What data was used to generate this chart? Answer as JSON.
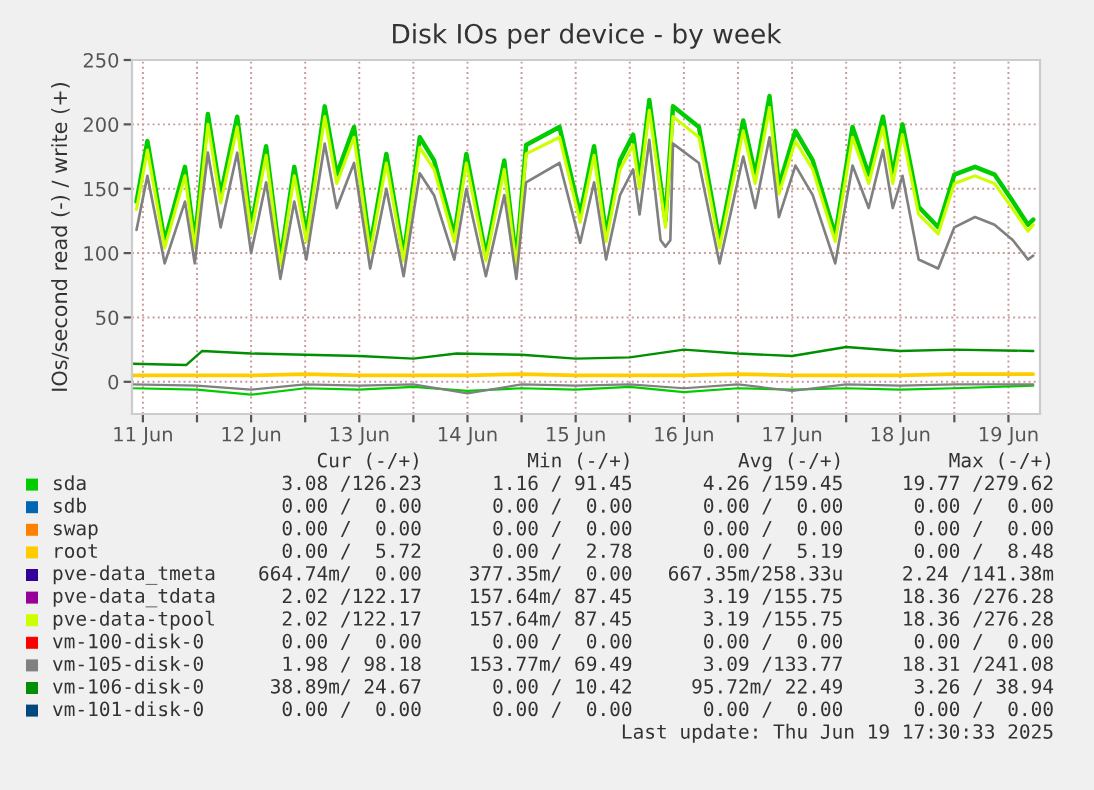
{
  "chart_data": {
    "type": "line",
    "title": "Disk IOs per device - by week",
    "ylabel": "IOs/second read (-) / write (+)",
    "xlim": [
      "2025-06-11T09:35",
      "2025-06-19T19:00"
    ],
    "ylim": [
      -25,
      250
    ],
    "yticks": [
      0,
      50,
      100,
      150,
      200,
      250
    ],
    "xticks": [
      {
        "value": "2025-06-11T12:00",
        "label": "11 Jun"
      },
      {
        "value": "2025-06-12",
        "label": null
      },
      {
        "value": "2025-06-12T12:00",
        "label": "12 Jun"
      },
      {
        "value": "2025-06-13",
        "label": null
      },
      {
        "value": "2025-06-13T12:00",
        "label": "13 Jun"
      },
      {
        "value": "2025-06-14",
        "label": null
      },
      {
        "value": "2025-06-14T12:00",
        "label": "14 Jun"
      },
      {
        "value": "2025-06-15",
        "label": null
      },
      {
        "value": "2025-06-15T12:00",
        "label": "15 Jun"
      },
      {
        "value": "2025-06-16",
        "label": null
      },
      {
        "value": "2025-06-16T12:00",
        "label": "16 Jun"
      },
      {
        "value": "2025-06-17",
        "label": null
      },
      {
        "value": "2025-06-17T12:00",
        "label": "17 Jun"
      },
      {
        "value": "2025-06-18",
        "label": null
      },
      {
        "value": "2025-06-18T12:00",
        "label": "18 Jun"
      },
      {
        "value": "2025-06-19",
        "label": null
      },
      {
        "value": "2025-06-19T12:00",
        "label": "19 Jun"
      }
    ],
    "grid": true,
    "legend": "bottom",
    "marker": "none",
    "line_style": "solid",
    "x": [
      "2025-06-11T10:35",
      "2025-06-11T13:00",
      "2025-06-11T16:50",
      "2025-06-11T21:20",
      "2025-06-11T23:30",
      "2025-06-12T02:25",
      "2025-06-12T05:15",
      "2025-06-12T08:55",
      "2025-06-12T12:00",
      "2025-06-12T15:20",
      "2025-06-12T18:30",
      "2025-06-12T21:35",
      "2025-06-13T00:15",
      "2025-06-13T04:20",
      "2025-06-13T07:00",
      "2025-06-13T10:50",
      "2025-06-13T14:25",
      "2025-06-13T18:00",
      "2025-06-13T21:50",
      "2025-06-14T01:25",
      "2025-06-14T04:35",
      "2025-06-14T09:05",
      "2025-06-14T11:45",
      "2025-06-14T16:05",
      "2025-06-14T20:10",
      "2025-06-14T22:50",
      "2025-06-15T01:00",
      "2025-06-15T08:25",
      "2025-06-15T13:00",
      "2025-06-15T16:05",
      "2025-06-15T18:45",
      "2025-06-15T21:50",
      "2025-06-16T00:45",
      "2025-06-16T02:10",
      "2025-06-16T04:20",
      "2025-06-16T07:55",
      "2025-06-16T09:35",
      "2025-06-16T15:20",
      "2025-06-16T19:55",
      "2025-06-17T01:10",
      "2025-06-17T03:50",
      "2025-06-17T07:00",
      "2025-06-17T09:05",
      "2025-06-17T12:45",
      "2025-06-17T16:35",
      "2025-06-17T21:35",
      "2025-06-18T01:25",
      "2025-06-18T05:00",
      "2025-06-18T08:10",
      "2025-06-18T10:20",
      "2025-06-18T12:30",
      "2025-06-18T16:05",
      "2025-06-18T20:25",
      "2025-06-19T00:00",
      "2025-06-19T04:35",
      "2025-06-19T08:55",
      "2025-06-19T13:00",
      "2025-06-19T16:20",
      "2025-06-19T17:30"
    ],
    "series": [
      {
        "name": "sda",
        "color": "#00cc00",
        "values": [
          140,
          187,
          109,
          167,
          109,
          208,
          145,
          206,
          120,
          183,
          94,
          167,
          114,
          214,
          161,
          198,
          105,
          177,
          98,
          190,
          172,
          114,
          177,
          98,
          172,
          94,
          184,
          198,
          130,
          183,
          114,
          172,
          192,
          156,
          219,
          125,
          214,
          198,
          109,
          203,
          161,
          222,
          152,
          195,
          172,
          114,
          198,
          161,
          206,
          161,
          200,
          136,
          120,
          161,
          167,
          161,
          140,
          122,
          126
        ]
      },
      {
        "name": "sdb",
        "color": "#0066b3",
        "values": [
          null,
          null,
          null,
          null,
          null,
          null,
          null,
          null,
          null,
          null,
          null,
          null,
          null,
          null,
          null,
          null,
          null,
          null,
          null,
          null,
          null,
          null,
          null,
          null,
          null,
          null,
          null,
          null,
          null,
          null,
          null,
          null,
          null,
          null,
          null,
          null,
          null,
          null,
          null,
          null,
          null,
          null,
          null,
          null,
          null,
          null,
          null,
          null,
          null,
          null,
          null,
          null,
          null,
          null,
          null,
          null,
          null,
          null,
          null
        ]
      },
      {
        "name": "swap",
        "color": "#ff8000",
        "values": [
          null,
          null,
          null,
          null,
          null,
          null,
          null,
          null,
          null,
          null,
          null,
          null,
          null,
          null,
          null,
          null,
          null,
          null,
          null,
          null,
          null,
          null,
          null,
          null,
          null,
          null,
          null,
          null,
          null,
          null,
          null,
          null,
          null,
          null,
          null,
          null,
          null,
          null,
          null,
          null,
          null,
          null,
          null,
          null,
          null,
          null,
          null,
          null,
          null,
          null,
          null,
          null,
          null,
          null,
          null,
          null,
          null,
          null,
          null
        ]
      },
      {
        "name": "root",
        "color": "#ffcc00",
        "x": [
          "2025-06-11T09:35",
          "2025-06-12",
          "2025-06-12T12:00",
          "2025-06-13",
          "2025-06-13T12:00",
          "2025-06-14",
          "2025-06-14T12:00",
          "2025-06-15",
          "2025-06-15T12:00",
          "2025-06-16",
          "2025-06-16T12:00",
          "2025-06-17",
          "2025-06-17T12:00",
          "2025-06-18",
          "2025-06-18T12:00",
          "2025-06-19",
          "2025-06-19T17:30"
        ],
        "values": [
          5,
          5,
          5,
          6,
          5,
          5,
          5,
          6,
          5,
          5,
          5,
          6,
          5,
          5,
          5,
          6,
          6
        ]
      },
      {
        "name": "pve-data_tmeta",
        "color": "#330099",
        "values": [
          null,
          null,
          null,
          null,
          null,
          null,
          null,
          null,
          null,
          null,
          null,
          null,
          null,
          null,
          null,
          null,
          null,
          null,
          null,
          null,
          null,
          null,
          null,
          null,
          null,
          null,
          null,
          null,
          null,
          null,
          null,
          null,
          null,
          null,
          null,
          null,
          null,
          null,
          null,
          null,
          null,
          null,
          null,
          null,
          null,
          null,
          null,
          null,
          null,
          null,
          null,
          null,
          null,
          null,
          null,
          null,
          null,
          null,
          null
        ]
      },
      {
        "name": "pve-data_tdata",
        "color": "#990099",
        "values": [
          null,
          null,
          null,
          null,
          null,
          null,
          null,
          null,
          null,
          null,
          null,
          null,
          null,
          null,
          null,
          null,
          null,
          null,
          null,
          null,
          null,
          null,
          null,
          null,
          null,
          null,
          null,
          null,
          null,
          null,
          null,
          null,
          null,
          null,
          null,
          null,
          null,
          null,
          null,
          null,
          null,
          null,
          null,
          null,
          null,
          null,
          null,
          null,
          null,
          null,
          null,
          null,
          null,
          null,
          null,
          null,
          null,
          null,
          null
        ]
      },
      {
        "name": "pve-data-tpool",
        "color": "#ccff00",
        "values": [
          134,
          180,
          104,
          160,
          104,
          200,
          139,
          198,
          115,
          176,
          90,
          160,
          109,
          206,
          154,
          190,
          100,
          170,
          94,
          182,
          165,
          109,
          170,
          94,
          165,
          90,
          177,
          190,
          124,
          176,
          109,
          165,
          184,
          150,
          211,
          120,
          206,
          190,
          104,
          195,
          154,
          213,
          146,
          187,
          165,
          109,
          190,
          154,
          198,
          154,
          192,
          130,
          115,
          154,
          160,
          154,
          134,
          117,
          122
        ]
      },
      {
        "name": "vm-100-disk-0",
        "color": "#ff0000",
        "values": [
          null,
          null,
          null,
          null,
          null,
          null,
          null,
          null,
          null,
          null,
          null,
          null,
          null,
          null,
          null,
          null,
          null,
          null,
          null,
          null,
          null,
          null,
          null,
          null,
          null,
          null,
          null,
          null,
          null,
          null,
          null,
          null,
          null,
          null,
          null,
          null,
          null,
          null,
          null,
          null,
          null,
          null,
          null,
          null,
          null,
          null,
          null,
          null,
          null,
          null,
          null,
          null,
          null,
          null,
          null,
          null,
          null,
          null,
          null
        ]
      },
      {
        "name": "vm-105-disk-0",
        "color": "#808080",
        "x": [
          "2025-06-11T10:35",
          "2025-06-11T13:00",
          "2025-06-11T16:50",
          "2025-06-11T21:20",
          "2025-06-11T23:30",
          "2025-06-12T02:25",
          "2025-06-12T05:15",
          "2025-06-12T08:55",
          "2025-06-12T12:00",
          "2025-06-12T15:20",
          "2025-06-12T18:30",
          "2025-06-12T21:35",
          "2025-06-13T00:15",
          "2025-06-13T04:20",
          "2025-06-13T07:00",
          "2025-06-13T10:50",
          "2025-06-13T14:25",
          "2025-06-13T18:00",
          "2025-06-13T21:50",
          "2025-06-14T01:25",
          "2025-06-14T04:35",
          "2025-06-14T09:05",
          "2025-06-14T11:45",
          "2025-06-14T16:05",
          "2025-06-14T20:10",
          "2025-06-14T22:50",
          "2025-06-15T01:00",
          "2025-06-15T08:25",
          "2025-06-15T13:00",
          "2025-06-15T16:05",
          "2025-06-15T18:45",
          "2025-06-15T21:50",
          "2025-06-16T00:45",
          "2025-06-16T02:10",
          "2025-06-16T04:20",
          "2025-06-16T06:50",
          "2025-06-16T07:55",
          "2025-06-16T09:00",
          "2025-06-16T09:35",
          "2025-06-16T15:20",
          "2025-06-16T19:55",
          "2025-06-17T01:10",
          "2025-06-17T03:50",
          "2025-06-17T07:00",
          "2025-06-17T09:05",
          "2025-06-17T12:45",
          "2025-06-17T16:35",
          "2025-06-17T21:35",
          "2025-06-18T01:25",
          "2025-06-18T05:00",
          "2025-06-18T08:10",
          "2025-06-18T10:20",
          "2025-06-18T12:30",
          "2025-06-18T16:05",
          "2025-06-18T20:25",
          "2025-06-19T00:00",
          "2025-06-19T04:35",
          "2025-06-19T08:55",
          "2025-06-19T13:00",
          "2025-06-19T16:20",
          "2025-06-19T17:30"
        ],
        "values": [
          118,
          160,
          92,
          140,
          92,
          178,
          120,
          178,
          100,
          155,
          80,
          140,
          95,
          185,
          135,
          170,
          88,
          150,
          82,
          162,
          145,
          95,
          150,
          82,
          145,
          80,
          155,
          170,
          108,
          155,
          95,
          145,
          165,
          130,
          188,
          110,
          105,
          110,
          185,
          170,
          92,
          175,
          135,
          190,
          128,
          168,
          145,
          92,
          168,
          135,
          180,
          135,
          160,
          95,
          88,
          120,
          128,
          122,
          110,
          95,
          98
        ]
      },
      {
        "name": "vm-106-disk-0",
        "color": "#008f00",
        "x": [
          "2025-06-11T09:35",
          "2025-06-11T21:35",
          "2025-06-12T01:10",
          "2025-06-12T12:00",
          "2025-06-13",
          "2025-06-13T12:00",
          "2025-06-14",
          "2025-06-14T09:35",
          "2025-06-15",
          "2025-06-15T12:00",
          "2025-06-16",
          "2025-06-16T12:00",
          "2025-06-17",
          "2025-06-17T12:00",
          "2025-06-18",
          "2025-06-18T12:00",
          "2025-06-19",
          "2025-06-19T17:30"
        ],
        "values": [
          14,
          13,
          24,
          22,
          21,
          20,
          18,
          22,
          21,
          18,
          19,
          25,
          22,
          20,
          27,
          24,
          25,
          24
        ]
      },
      {
        "name": "vm-101-disk-0",
        "color": "#00487d",
        "values": [
          null,
          null,
          null,
          null,
          null,
          null,
          null,
          null,
          null,
          null,
          null,
          null,
          null,
          null,
          null,
          null,
          null,
          null,
          null,
          null,
          null,
          null,
          null,
          null,
          null,
          null,
          null,
          null,
          null,
          null,
          null,
          null,
          null,
          null,
          null,
          null,
          null,
          null,
          null,
          null,
          null,
          null,
          null,
          null,
          null,
          null,
          null,
          null,
          null,
          null,
          null,
          null,
          null,
          null,
          null,
          null,
          null,
          null,
          null
        ]
      },
      {
        "color": "#00cc00",
        "x": [
          "2025-06-11T09:35",
          "2025-06-12",
          "2025-06-12T12:00",
          "2025-06-13",
          "2025-06-13T12:00",
          "2025-06-14",
          "2025-06-14T12:00",
          "2025-06-15",
          "2025-06-15T12:00",
          "2025-06-16",
          "2025-06-16T12:00",
          "2025-06-17",
          "2025-06-17T12:00",
          "2025-06-18",
          "2025-06-18T12:00",
          "2025-06-19",
          "2025-06-19T17:30"
        ],
        "values": [
          -5,
          -6,
          -10,
          -5,
          -6,
          -4,
          -7,
          -5,
          -6,
          -4,
          -8,
          -5,
          -6,
          -5,
          -6,
          -5,
          -3
        ]
      },
      {
        "color": "#808080",
        "x": [
          "2025-06-11T09:35",
          "2025-06-12",
          "2025-06-12T12:00",
          "2025-06-13",
          "2025-06-13T12:00",
          "2025-06-14",
          "2025-06-14T12:00",
          "2025-06-15",
          "2025-06-15T12:00",
          "2025-06-16",
          "2025-06-16T12:00",
          "2025-06-17",
          "2025-06-17T12:00",
          "2025-06-18",
          "2025-06-18T12:00",
          "2025-06-19",
          "2025-06-19T17:30"
        ],
        "values": [
          -2,
          -3,
          -6,
          -2,
          -3,
          -2,
          -9,
          -2,
          -3,
          -2,
          -5,
          -2,
          -7,
          -2,
          -3,
          -2,
          -2
        ]
      }
    ],
    "annotations": [
      "         Cur (-/+)         Min (-/+)         Avg (-/+)         Max (-/+)",
      "      3.08 /126.23      1.16 / 91.45      4.26 /159.45     19.77 /279.62",
      "      0.00 /  0.00      0.00 /  0.00      0.00 /  0.00      0.00 /  0.00",
      "      0.00 /  0.00      0.00 /  0.00      0.00 /  0.00      0.00 /  0.00",
      "      0.00 /  5.72      0.00 /  2.78      0.00 /  5.19      0.00 /  8.48",
      "    664.74m/  0.00    377.35m/  0.00   667.35m/258.33u     2.24 /141.38m",
      "      2.02 /122.17    157.64m/ 87.45      3.19 /155.75     18.36 /276.28",
      "      2.02 /122.17    157.64m/ 87.45      3.19 /155.75     18.36 /276.28",
      "      0.00 /  0.00      0.00 /  0.00      0.00 /  0.00      0.00 /  0.00",
      "      1.98 / 98.18    153.77m/ 69.49      3.09 /133.77     18.31 /241.08",
      "     38.89m/ 24.67      0.00 / 10.42     95.72m/ 22.49      3.26 / 38.94",
      "      0.00 /  0.00      0.00 /  0.00      0.00 /  0.00      0.00 /  0.00",
      "Last update: Thu Jun 19 17:30:33 2025"
    ]
  }
}
